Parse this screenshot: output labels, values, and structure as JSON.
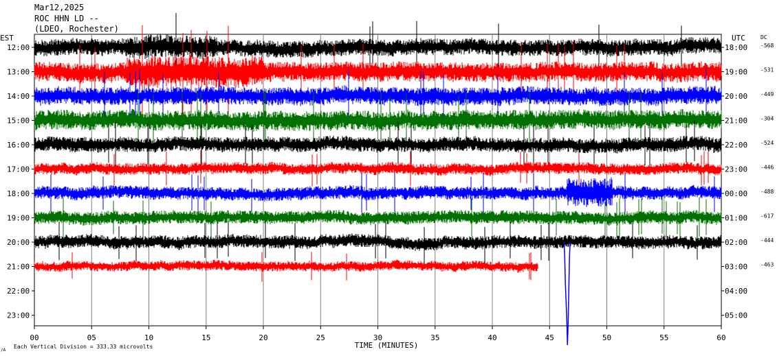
{
  "header": {
    "date": "Mar12,2025",
    "station": "ROC HHN LD --",
    "network": "(LDEO, Rochester)"
  },
  "chart_data": {
    "type": "line",
    "title": "",
    "xlabel": "TIME (MINUTES)",
    "xlim": [
      0,
      60
    ],
    "x_ticks": [
      "00",
      "05",
      "10",
      "15",
      "20",
      "25",
      "30",
      "35",
      "40",
      "45",
      "50",
      "55",
      "60"
    ],
    "left_axis_label": "EST",
    "right_axis_label": "UTC",
    "dc_label": "DC",
    "grid_vertical": true,
    "scale_note": "Each Vertical Division =  333.33 microvolts",
    "corner_mark": "/A",
    "rows": [
      {
        "est": "12:00",
        "utc": "18:00",
        "dc": "-568",
        "color": "#000000",
        "end_minute": 60
      },
      {
        "est": "13:00",
        "utc": "19:00",
        "dc": "-531",
        "color": "#ff0000",
        "end_minute": 60
      },
      {
        "est": "14:00",
        "utc": "20:00",
        "dc": "-449",
        "color": "#0000ff",
        "end_minute": 60
      },
      {
        "est": "15:00",
        "utc": "21:00",
        "dc": "-304",
        "color": "#007000",
        "end_minute": 60
      },
      {
        "est": "16:00",
        "utc": "22:00",
        "dc": "-524",
        "color": "#000000",
        "end_minute": 60
      },
      {
        "est": "17:00",
        "utc": "23:00",
        "dc": "-446",
        "color": "#ff0000",
        "end_minute": 60
      },
      {
        "est": "18:00",
        "utc": "00:00",
        "dc": "-488",
        "color": "#0000ff",
        "end_minute": 60
      },
      {
        "est": "19:00",
        "utc": "01:00",
        "dc": "-617",
        "color": "#007000",
        "end_minute": 60
      },
      {
        "est": "20:00",
        "utc": "02:00",
        "dc": "-444",
        "color": "#000000",
        "end_minute": 60
      },
      {
        "est": "21:00",
        "utc": "03:00",
        "dc": "-463",
        "color": "#ff0000",
        "end_minute": 44
      },
      {
        "est": "22:00",
        "utc": "04:00",
        "dc": "",
        "color": "",
        "end_minute": 0
      },
      {
        "est": "23:00",
        "utc": "05:00",
        "dc": "",
        "color": "",
        "end_minute": 0
      }
    ],
    "amplitudes": [
      10,
      12,
      11,
      12,
      9,
      7,
      8,
      8,
      8,
      6,
      0,
      0
    ],
    "events": [
      {
        "row": 6,
        "minute": 46.5,
        "type": "teleseism"
      },
      {
        "row": 8,
        "minute": 46.5,
        "type": "spike",
        "depth_rows": 4
      }
    ]
  }
}
